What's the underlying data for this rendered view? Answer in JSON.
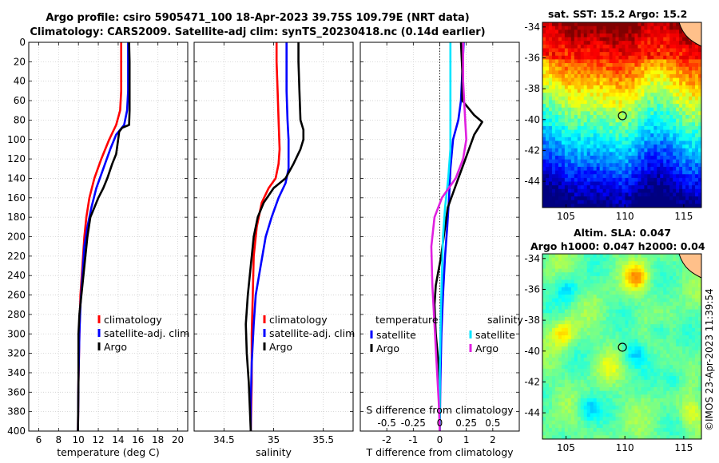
{
  "titles": {
    "line1": "Argo profile: csiro 5905471_100 18-Apr-2023 39.75S 109.79E (NRT data)",
    "line2": "Climatology: CARS2009. Satellite-adj clim: synTS_20230418.nc (0.14d earlier)"
  },
  "stamp": "©IMOS 23-Apr-2023 11:39:54",
  "map_titles": {
    "sst": "sat. SST: 15.2 Argo: 15.2",
    "sla1": "Altim. SLA: 0.047",
    "sla2": "Argo h1000: 0.047 h2000: 0.04"
  },
  "colors": {
    "clim": "#ff0000",
    "sat": "#0000ff",
    "argo": "#000000",
    "s_sat": "#00e5ff",
    "s_argo": "#e020e0"
  },
  "chart_data": [
    {
      "id": "temperature",
      "type": "line",
      "xlabel": "temperature (deg C)",
      "ylabel": "",
      "xlim": [
        5,
        21
      ],
      "ylim": [
        400,
        0
      ],
      "xticks": [
        6,
        8,
        10,
        12,
        14,
        16,
        18,
        20
      ],
      "yticks": [
        0,
        20,
        40,
        60,
        80,
        100,
        120,
        140,
        160,
        180,
        200,
        220,
        240,
        260,
        280,
        300,
        320,
        340,
        360,
        380,
        400
      ],
      "grid": true,
      "legend": [
        "climatology",
        "satellite-adj. clim",
        "Argo"
      ],
      "series": [
        {
          "name": "climatology",
          "color": "clim",
          "points": [
            [
              14.3,
              0
            ],
            [
              14.3,
              20
            ],
            [
              14.3,
              50
            ],
            [
              14.2,
              70
            ],
            [
              13.8,
              85
            ],
            [
              13.1,
              100
            ],
            [
              12.3,
              120
            ],
            [
              11.6,
              140
            ],
            [
              11.1,
              160
            ],
            [
              10.8,
              180
            ],
            [
              10.6,
              200
            ],
            [
              10.4,
              230
            ],
            [
              10.2,
              260
            ],
            [
              10.1,
              300
            ],
            [
              10.0,
              350
            ],
            [
              9.95,
              400
            ]
          ]
        },
        {
          "name": "satellite-adj. clim",
          "color": "sat",
          "points": [
            [
              15.0,
              0
            ],
            [
              15.0,
              20
            ],
            [
              15.0,
              50
            ],
            [
              14.9,
              70
            ],
            [
              14.6,
              85
            ],
            [
              13.8,
              95
            ],
            [
              13.2,
              110
            ],
            [
              12.5,
              130
            ],
            [
              11.8,
              150
            ],
            [
              11.3,
              170
            ],
            [
              10.9,
              190
            ],
            [
              10.6,
              210
            ],
            [
              10.4,
              240
            ],
            [
              10.2,
              270
            ],
            [
              10.1,
              300
            ],
            [
              10.0,
              350
            ],
            [
              9.95,
              400
            ]
          ]
        },
        {
          "name": "Argo",
          "color": "argo",
          "points": [
            [
              15.1,
              0
            ],
            [
              15.15,
              20
            ],
            [
              15.15,
              50
            ],
            [
              15.15,
              70
            ],
            [
              15.1,
              85
            ],
            [
              14.4,
              88
            ],
            [
              14.1,
              92
            ],
            [
              14.0,
              100
            ],
            [
              13.8,
              115
            ],
            [
              13.4,
              125
            ],
            [
              12.9,
              140
            ],
            [
              12.5,
              150
            ],
            [
              12.0,
              160
            ],
            [
              11.6,
              170
            ],
            [
              11.2,
              180
            ],
            [
              10.9,
              200
            ],
            [
              10.7,
              220
            ],
            [
              10.5,
              240
            ],
            [
              10.3,
              260
            ],
            [
              10.1,
              280
            ],
            [
              10.0,
              300
            ],
            [
              10.0,
              350
            ],
            [
              9.95,
              400
            ]
          ]
        }
      ]
    },
    {
      "id": "salinity",
      "type": "line",
      "xlabel": "salinity",
      "ylabel": "",
      "xlim": [
        34.2,
        35.8
      ],
      "ylim": [
        400,
        0
      ],
      "xticks": [
        34.5,
        35,
        35.5
      ],
      "yticks": [
        0,
        20,
        40,
        60,
        80,
        100,
        120,
        140,
        160,
        180,
        200,
        220,
        240,
        260,
        280,
        300,
        320,
        340,
        360,
        380,
        400
      ],
      "grid": true,
      "legend": [
        "climatology",
        "satellite-adj. clim",
        "Argo"
      ],
      "series": [
        {
          "name": "climatology",
          "color": "clim",
          "points": [
            [
              35.03,
              0
            ],
            [
              35.03,
              20
            ],
            [
              35.04,
              50
            ],
            [
              35.05,
              80
            ],
            [
              35.06,
              110
            ],
            [
              35.05,
              125
            ],
            [
              35.02,
              140
            ],
            [
              34.95,
              150
            ],
            [
              34.88,
              165
            ],
            [
              34.83,
              190
            ],
            [
              34.8,
              220
            ],
            [
              34.79,
              260
            ],
            [
              34.78,
              300
            ],
            [
              34.78,
              350
            ],
            [
              34.77,
              400
            ]
          ]
        },
        {
          "name": "satellite-adj. clim",
          "color": "sat",
          "points": [
            [
              35.13,
              0
            ],
            [
              35.13,
              20
            ],
            [
              35.13,
              50
            ],
            [
              35.14,
              80
            ],
            [
              35.15,
              100
            ],
            [
              35.15,
              130
            ],
            [
              35.12,
              145
            ],
            [
              35.05,
              160
            ],
            [
              34.98,
              180
            ],
            [
              34.92,
              200
            ],
            [
              34.87,
              230
            ],
            [
              34.82,
              260
            ],
            [
              34.8,
              290
            ],
            [
              34.78,
              330
            ],
            [
              34.77,
              370
            ],
            [
              34.77,
              400
            ]
          ]
        },
        {
          "name": "Argo",
          "color": "argo",
          "points": [
            [
              35.25,
              0
            ],
            [
              35.25,
              20
            ],
            [
              35.26,
              50
            ],
            [
              35.27,
              80
            ],
            [
              35.3,
              90
            ],
            [
              35.3,
              100
            ],
            [
              35.27,
              110
            ],
            [
              35.2,
              125
            ],
            [
              35.12,
              140
            ],
            [
              35.0,
              150
            ],
            [
              34.9,
              165
            ],
            [
              34.84,
              180
            ],
            [
              34.8,
              200
            ],
            [
              34.77,
              230
            ],
            [
              34.74,
              260
            ],
            [
              34.72,
              290
            ],
            [
              34.73,
              320
            ],
            [
              34.75,
              350
            ],
            [
              34.77,
              400
            ]
          ]
        }
      ]
    },
    {
      "id": "difference",
      "type": "line",
      "xlabel": "T difference from climatology",
      "xlabel_top": "S difference from climatology",
      "xlim": [
        -3,
        3
      ],
      "ylim": [
        400,
        0
      ],
      "xticks": [
        -2,
        -1,
        0,
        1,
        2
      ],
      "sticks": [
        -0.5,
        -0.25,
        0,
        0.25,
        0.5
      ],
      "sticklabels": [
        "-0.5",
        "-0.25",
        "0",
        "0.25",
        "0.5"
      ],
      "yticks": [
        0,
        20,
        40,
        60,
        80,
        100,
        120,
        140,
        160,
        180,
        200,
        220,
        240,
        260,
        280,
        300,
        320,
        340,
        360,
        380,
        400
      ],
      "grid": true,
      "legend_left": [
        "temperature",
        "satellite",
        "Argo"
      ],
      "legend_right": [
        "salinity",
        "satellite",
        "Argo"
      ],
      "series": [
        {
          "name": "T satellite",
          "units": "T",
          "color": "sat",
          "points": [
            [
              0.9,
              0
            ],
            [
              0.85,
              30
            ],
            [
              0.8,
              60
            ],
            [
              0.7,
              80
            ],
            [
              0.5,
              100
            ],
            [
              0.4,
              130
            ],
            [
              0.35,
              160
            ],
            [
              0.28,
              190
            ],
            [
              0.2,
              220
            ],
            [
              0.12,
              260
            ],
            [
              0.06,
              300
            ],
            [
              0.02,
              350
            ],
            [
              0.0,
              400
            ]
          ]
        },
        {
          "name": "T Argo",
          "units": "T",
          "color": "argo",
          "points": [
            [
              0.8,
              0
            ],
            [
              0.85,
              30
            ],
            [
              0.85,
              60
            ],
            [
              1.3,
              75
            ],
            [
              1.6,
              82
            ],
            [
              1.3,
              95
            ],
            [
              1.1,
              110
            ],
            [
              0.9,
              125
            ],
            [
              0.7,
              140
            ],
            [
              0.5,
              155
            ],
            [
              0.3,
              170
            ],
            [
              0.2,
              190
            ],
            [
              0.05,
              220
            ],
            [
              -0.15,
              250
            ],
            [
              -0.2,
              270
            ],
            [
              -0.15,
              300
            ],
            [
              -0.05,
              330
            ],
            [
              0.0,
              360
            ],
            [
              0.0,
              400
            ]
          ]
        },
        {
          "name": "S satellite",
          "units": "S",
          "color": "s_sat",
          "points": [
            [
              0.1,
              0
            ],
            [
              0.1,
              40
            ],
            [
              0.1,
              80
            ],
            [
              0.1,
              110
            ],
            [
              0.08,
              140
            ],
            [
              0.05,
              170
            ],
            [
              0.03,
              200
            ],
            [
              0.02,
              240
            ],
            [
              0.01,
              280
            ],
            [
              0.0,
              340
            ],
            [
              0.0,
              400
            ]
          ]
        },
        {
          "name": "S Argo",
          "units": "S",
          "color": "s_argo",
          "points": [
            [
              0.22,
              0
            ],
            [
              0.22,
              40
            ],
            [
              0.24,
              80
            ],
            [
              0.25,
              100
            ],
            [
              0.22,
              120
            ],
            [
              0.15,
              140
            ],
            [
              0.02,
              160
            ],
            [
              -0.05,
              180
            ],
            [
              -0.08,
              210
            ],
            [
              -0.07,
              250
            ],
            [
              -0.05,
              290
            ],
            [
              -0.03,
              330
            ],
            [
              -0.01,
              370
            ],
            [
              0.0,
              400
            ]
          ]
        }
      ]
    },
    {
      "id": "sst_map",
      "type": "heatmap",
      "title": "sat. SST: 15.2 Argo: 15.2",
      "xlim": [
        103,
        116.5
      ],
      "ylim": [
        -45.7,
        -33.7
      ],
      "xticks": [
        105,
        110,
        115
      ],
      "yticks": [
        -34,
        -36,
        -38,
        -40,
        -42,
        -44
      ],
      "argo_position": [
        109.79,
        -39.75
      ]
    },
    {
      "id": "sla_map",
      "type": "heatmap",
      "title": "Altim. SLA: 0.047",
      "xlim": [
        103,
        116.5
      ],
      "ylim": [
        -45.7,
        -33.7
      ],
      "xticks": [
        105,
        110,
        115
      ],
      "yticks": [
        -34,
        -36,
        -38,
        -40,
        -42,
        -44
      ],
      "argo_position": [
        109.79,
        -39.75
      ]
    }
  ]
}
